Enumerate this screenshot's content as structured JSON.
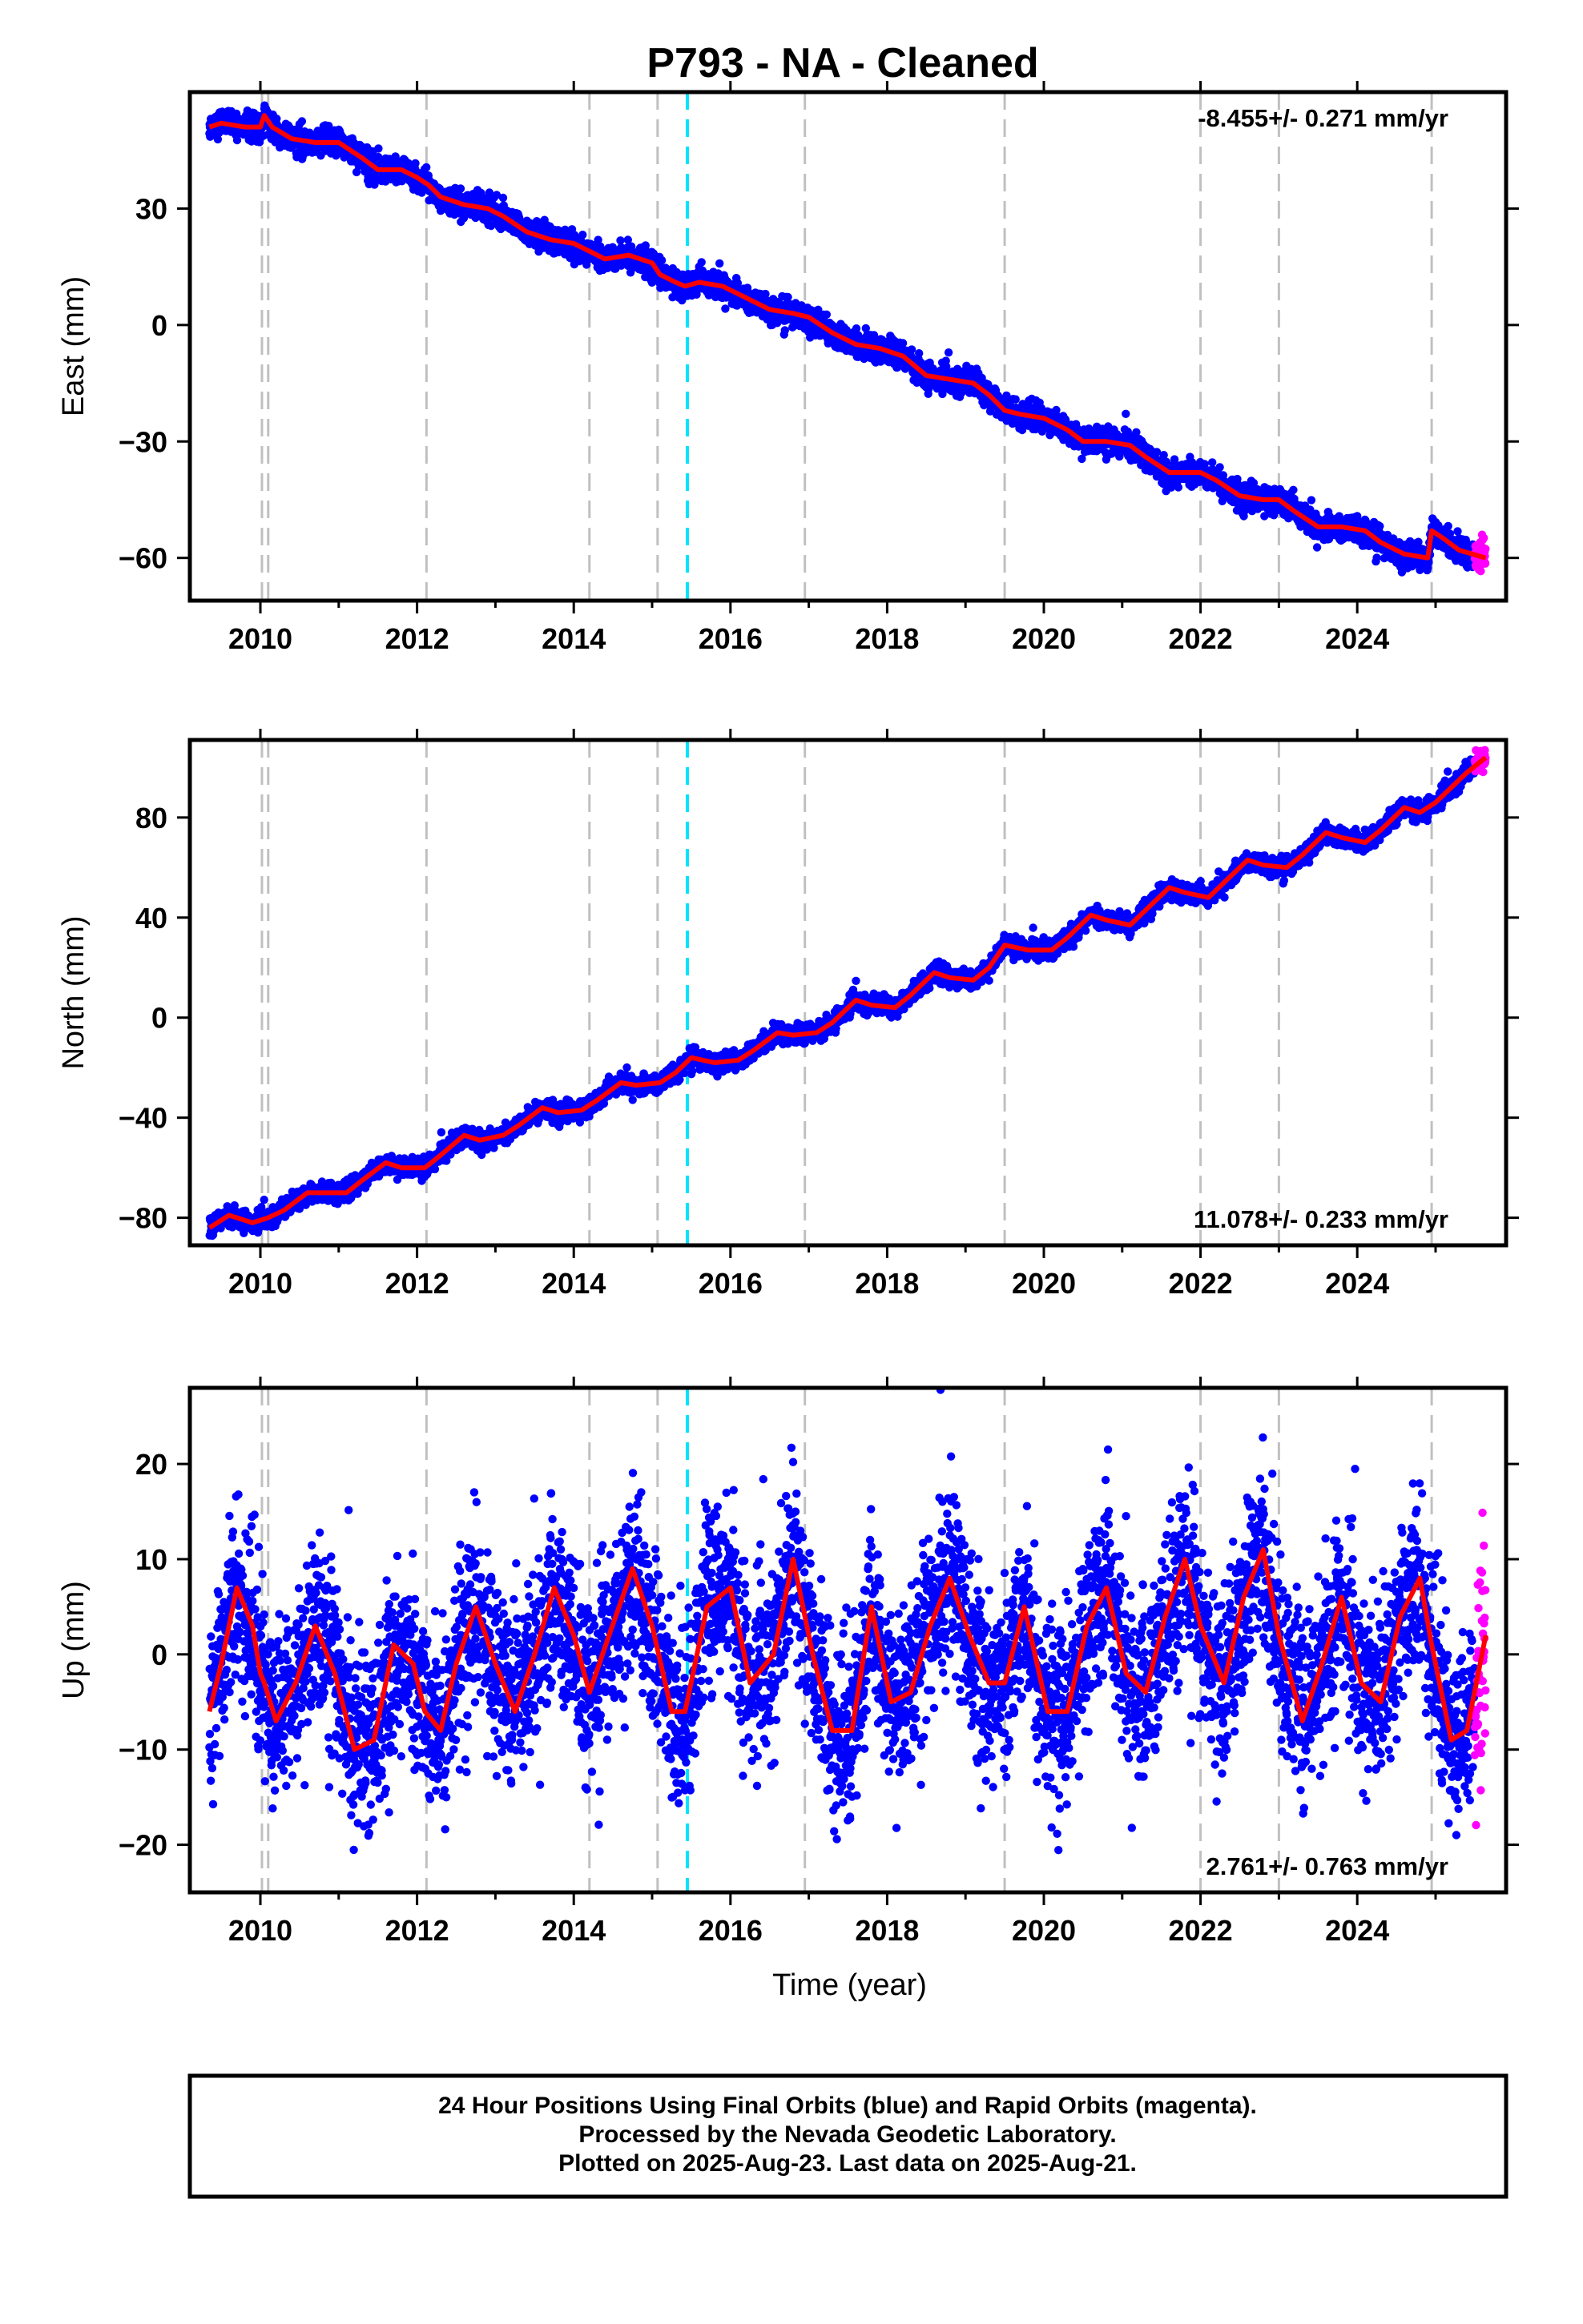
{
  "page": {
    "title": "P793  - NA - Cleaned"
  },
  "footer": {
    "line1": "24 Hour Positions Using Final Orbits (blue) and Rapid Orbits (magenta).",
    "line2": "Processed by the Nevada Geodetic Laboratory.",
    "line3": "Plotted on 2025-Aug-23. Last data on 2025-Aug-21."
  },
  "colors": {
    "final_orbits": "#0000ff",
    "rapid_orbits": "#ff00ff",
    "model": "#ff0000",
    "equipment_change": "#c0c0c0",
    "earthquake_line": "#00e5ff"
  },
  "chart_data": [
    {
      "type": "scatter",
      "component": "east",
      "ylabel": "East (mm)",
      "xlabel": "",
      "xlim": [
        2009.1,
        2025.9
      ],
      "ylim": [
        -71,
        60
      ],
      "xticks": [
        2010,
        2012,
        2014,
        2016,
        2018,
        2020,
        2022,
        2024
      ],
      "yticks": [
        -60,
        -30,
        0,
        30
      ],
      "rate_text": "-8.455+/- 0.271 mm/yr",
      "rate_position": "top-right",
      "data_start": 2009.35,
      "final_orbits_end": 2025.5,
      "data_end": 2025.64,
      "model_series": {
        "name": "model",
        "x": [
          2009.35,
          2009.5,
          2009.8,
          2010.0,
          2010.05,
          2010.15,
          2010.4,
          2010.7,
          2011.0,
          2011.3,
          2011.5,
          2011.8,
          2012.0,
          2012.15,
          2012.3,
          2012.6,
          2012.9,
          2013.1,
          2013.4,
          2013.7,
          2014.0,
          2014.2,
          2014.4,
          2014.7,
          2015.0,
          2015.1,
          2015.3,
          2015.42,
          2015.6,
          2015.9,
          2016.2,
          2016.5,
          2016.8,
          2017.0,
          2017.3,
          2017.6,
          2017.9,
          2018.2,
          2018.5,
          2018.8,
          2019.1,
          2019.3,
          2019.5,
          2019.7,
          2020.0,
          2020.3,
          2020.5,
          2020.8,
          2021.1,
          2021.3,
          2021.6,
          2021.9,
          2022.0,
          2022.2,
          2022.5,
          2022.8,
          2023.0,
          2023.2,
          2023.5,
          2023.8,
          2024.1,
          2024.3,
          2024.6,
          2024.9,
          2024.95,
          2025.1,
          2025.3,
          2025.64
        ],
        "y": [
          51,
          52,
          51,
          51,
          54,
          51,
          48,
          47,
          47,
          43,
          40,
          40,
          38,
          36,
          33,
          31,
          30,
          28,
          24,
          22,
          21,
          19,
          17,
          18,
          16,
          13,
          11,
          10,
          11,
          10,
          7,
          4,
          3,
          2,
          -2,
          -5,
          -6,
          -8,
          -13,
          -14,
          -15,
          -18,
          -22,
          -23,
          -24,
          -27,
          -30,
          -30,
          -31,
          -34,
          -38,
          -38,
          -38,
          -40,
          -44,
          -45,
          -45,
          -48,
          -52,
          -52,
          -53,
          -56,
          -59,
          -60,
          -53,
          -55,
          -58,
          -60
        ]
      },
      "scatter_series": [
        {
          "name": "Final Orbits",
          "color": "blue",
          "noise_mm": 1.6
        },
        {
          "name": "Rapid Orbits",
          "color": "magenta",
          "noise_mm": 2.2
        }
      ]
    },
    {
      "type": "scatter",
      "component": "north",
      "ylabel": "North (mm)",
      "xlabel": "",
      "xlim": [
        2009.1,
        2025.9
      ],
      "ylim": [
        -91,
        111
      ],
      "xticks": [
        2010,
        2012,
        2014,
        2016,
        2018,
        2020,
        2022,
        2024
      ],
      "yticks": [
        -80,
        -40,
        0,
        40,
        80
      ],
      "rate_text": "11.078+/- 0.233 mm/yr",
      "rate_position": "bottom-right",
      "data_start": 2009.35,
      "final_orbits_end": 2025.5,
      "data_end": 2025.64,
      "model_series": {
        "name": "model",
        "x": [
          2009.35,
          2009.6,
          2009.9,
          2010.1,
          2010.3,
          2010.6,
          2010.8,
          2011.1,
          2011.3,
          2011.6,
          2011.8,
          2012.1,
          2012.3,
          2012.6,
          2012.8,
          2013.1,
          2013.3,
          2013.6,
          2013.8,
          2014.1,
          2014.3,
          2014.6,
          2014.8,
          2015.1,
          2015.3,
          2015.5,
          2015.8,
          2016.1,
          2016.3,
          2016.6,
          2016.8,
          2017.1,
          2017.3,
          2017.6,
          2017.8,
          2018.1,
          2018.3,
          2018.6,
          2018.8,
          2019.1,
          2019.3,
          2019.5,
          2019.8,
          2020.1,
          2020.3,
          2020.6,
          2020.8,
          2021.1,
          2021.3,
          2021.6,
          2021.8,
          2022.1,
          2022.3,
          2022.6,
          2022.8,
          2023.1,
          2023.3,
          2023.6,
          2023.8,
          2024.1,
          2024.3,
          2024.6,
          2024.8,
          2025.0,
          2025.2,
          2025.4,
          2025.64
        ],
        "y": [
          -84,
          -79,
          -82,
          -80,
          -77,
          -70,
          -70,
          -70,
          -65,
          -58,
          -60,
          -60,
          -55,
          -47,
          -49,
          -47,
          -43,
          -36,
          -38,
          -37,
          -33,
          -26,
          -27,
          -26,
          -22,
          -16,
          -18,
          -17,
          -13,
          -6,
          -7,
          -6,
          -2,
          7,
          5,
          4,
          9,
          18,
          16,
          15,
          20,
          29,
          27,
          27,
          32,
          41,
          39,
          37,
          43,
          52,
          50,
          48,
          54,
          63,
          61,
          60,
          65,
          74,
          72,
          70,
          75,
          84,
          82,
          86,
          92,
          98,
          104
        ]
      },
      "scatter_series": [
        {
          "name": "Final Orbits",
          "color": "blue",
          "noise_mm": 1.8
        },
        {
          "name": "Rapid Orbits",
          "color": "magenta",
          "noise_mm": 2.2
        }
      ]
    },
    {
      "type": "scatter",
      "component": "up",
      "ylabel": "Up (mm)",
      "xlabel": "Time (year)",
      "xlim": [
        2009.1,
        2025.9
      ],
      "ylim": [
        -25,
        28
      ],
      "xticks": [
        2010,
        2012,
        2014,
        2016,
        2018,
        2020,
        2022,
        2024
      ],
      "yticks": [
        -20,
        -10,
        0,
        10,
        20
      ],
      "rate_text": "2.761+/- 0.763 mm/yr",
      "rate_position": "bottom-right",
      "data_start": 2009.35,
      "final_orbits_end": 2025.5,
      "data_end": 2025.64,
      "model_series": {
        "name": "model",
        "x": [
          2009.35,
          2009.5,
          2009.7,
          2009.9,
          2010.0,
          2010.05,
          2010.2,
          2010.45,
          2010.7,
          2010.95,
          2011.2,
          2011.45,
          2011.7,
          2011.95,
          2012.1,
          2012.3,
          2012.5,
          2012.75,
          2013.0,
          2013.25,
          2013.5,
          2013.75,
          2014.0,
          2014.2,
          2014.45,
          2014.75,
          2015.0,
          2015.25,
          2015.42,
          2015.7,
          2016.0,
          2016.25,
          2016.55,
          2016.8,
          2017.05,
          2017.3,
          2017.55,
          2017.8,
          2018.05,
          2018.3,
          2018.55,
          2018.8,
          2019.05,
          2019.3,
          2019.5,
          2019.75,
          2020.05,
          2020.3,
          2020.55,
          2020.8,
          2021.05,
          2021.3,
          2021.55,
          2021.8,
          2022.0,
          2022.3,
          2022.55,
          2022.8,
          2023.0,
          2023.3,
          2023.55,
          2023.8,
          2024.05,
          2024.3,
          2024.55,
          2024.8,
          2024.95,
          2025.2,
          2025.4,
          2025.64
        ],
        "y": [
          -6,
          -1,
          7,
          3,
          -2,
          -3,
          -7,
          -3,
          3,
          -2,
          -10,
          -9,
          1,
          -1,
          -6,
          -8,
          -1,
          5,
          -1,
          -6,
          0,
          7,
          2,
          -4,
          2,
          9,
          3,
          -6,
          -6,
          5,
          7,
          -3,
          0,
          10,
          0,
          -8,
          -8,
          5,
          -5,
          -4,
          3,
          8,
          2,
          -3,
          -3,
          5,
          -6,
          -6,
          3,
          7,
          -2,
          -4,
          4,
          10,
          3,
          -3,
          6,
          11,
          2,
          -7,
          -1,
          6,
          -3,
          -5,
          4,
          8,
          1,
          -9,
          -8,
          2
        ]
      },
      "scatter_series": [
        {
          "name": "Final Orbits",
          "color": "blue",
          "noise_mm": 4.6
        },
        {
          "name": "Rapid Orbits",
          "color": "magenta",
          "noise_mm": 7.5
        }
      ]
    }
  ],
  "event_lines": {
    "equipment_change": [
      2010.02,
      2010.1,
      2012.12,
      2014.2,
      2015.07,
      2016.95,
      2019.5,
      2022.0,
      2023.0,
      2024.95
    ],
    "earthquake": [
      2015.45
    ]
  }
}
